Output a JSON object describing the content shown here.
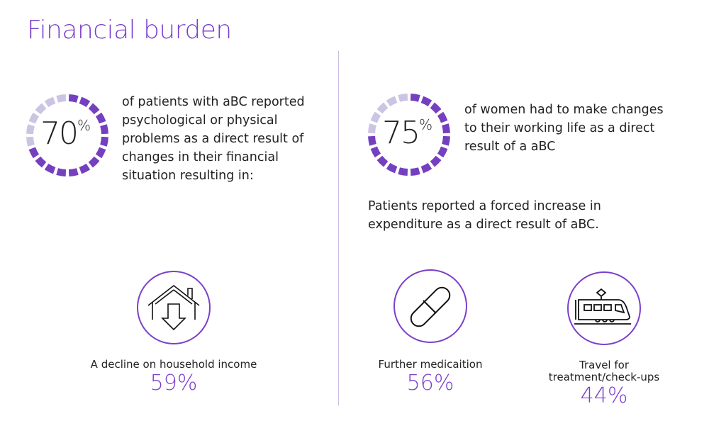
{
  "title": "Financial burden",
  "colors": {
    "accent": "#7b3fcc",
    "ring_filled": "#7440c0",
    "ring_empty": "#cbc4e3"
  },
  "stat1": {
    "value": 70,
    "value_text": "70",
    "unit": "%",
    "text": "of patients with aBC reported psychological or physical problems as a direct result of changes in their financial situation resulting in:"
  },
  "stat2": {
    "value": 75,
    "value_text": "75",
    "unit": "%",
    "text": "of women had to make changes to their working life as a direct result of a aBC"
  },
  "expenditure_text": "Patients reported a forced increase in expenditure as a direct result of aBC.",
  "items": [
    {
      "icon": "house-down-arrow-icon",
      "label": "A decline on household income",
      "pct": "59%"
    },
    {
      "icon": "pill-icon",
      "label": "Further medicaition",
      "pct": "56%"
    },
    {
      "icon": "train-icon",
      "label": "Travel for treatment/check-ups",
      "pct": "44%"
    }
  ]
}
